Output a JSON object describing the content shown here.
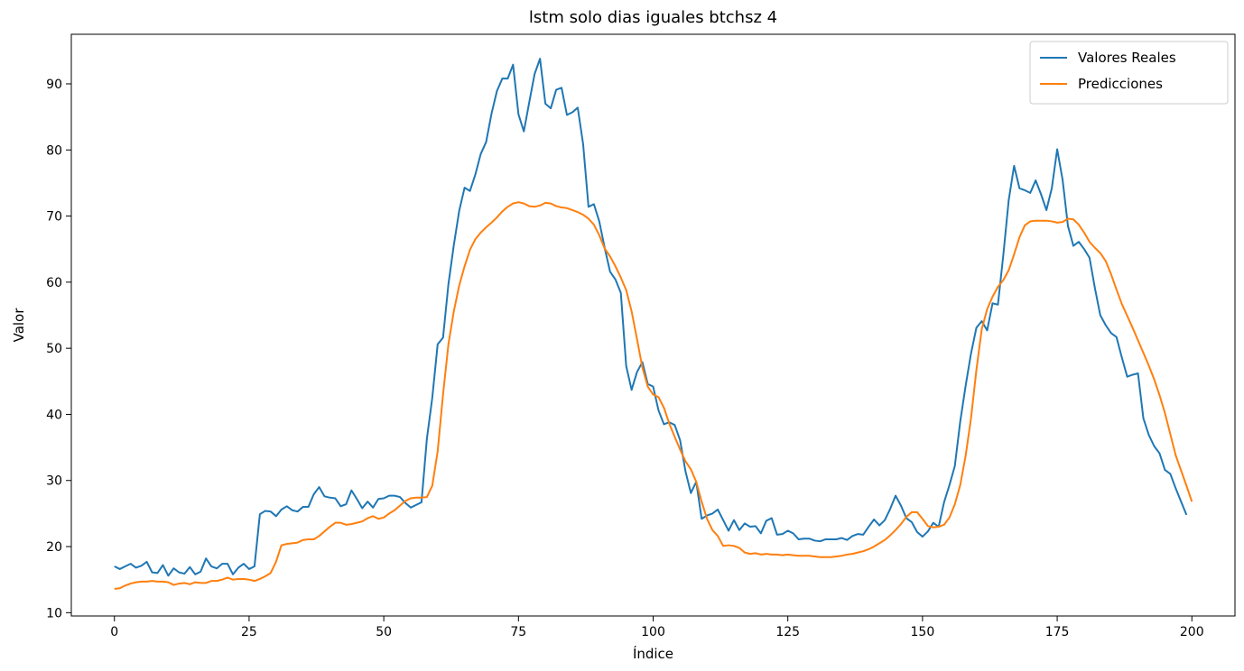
{
  "chart_data": {
    "type": "line",
    "title": "lstm solo dias iguales btchsz 4",
    "xlabel": "Índice",
    "ylabel": "Valor",
    "xlim": [
      -8,
      208
    ],
    "ylim": [
      9.5,
      97.5
    ],
    "xticks": [
      0,
      25,
      50,
      75,
      100,
      125,
      150,
      175,
      200
    ],
    "yticks": [
      10,
      20,
      30,
      40,
      50,
      60,
      70,
      80,
      90
    ],
    "grid": false,
    "legend_position": "top-right",
    "series": [
      {
        "name": "Valores Reales",
        "color": "#1f77b4",
        "x_start": 0,
        "values": [
          17.0,
          16.6,
          17.0,
          17.4,
          16.8,
          17.1,
          17.7,
          16.1,
          16.0,
          17.2,
          15.6,
          16.7,
          16.1,
          15.9,
          16.9,
          15.8,
          16.2,
          18.2,
          17.0,
          16.7,
          17.4,
          17.4,
          15.8,
          16.8,
          17.4,
          16.6,
          17.0,
          24.9,
          25.4,
          25.3,
          24.6,
          25.6,
          26.1,
          25.5,
          25.3,
          26.0,
          26.0,
          27.9,
          29.0,
          27.6,
          27.4,
          27.3,
          26.1,
          26.4,
          28.5,
          27.2,
          25.8,
          26.8,
          25.9,
          27.2,
          27.3,
          27.7,
          27.7,
          27.5,
          26.6,
          25.9,
          26.3,
          26.7,
          36.3,
          42.5,
          50.6,
          51.6,
          59.7,
          65.6,
          70.8,
          74.3,
          73.8,
          76.3,
          79.4,
          81.2,
          85.5,
          88.9,
          90.8,
          90.8,
          92.9,
          85.4,
          82.8,
          87.2,
          91.5,
          93.8,
          87.0,
          86.3,
          89.1,
          89.4,
          85.3,
          85.7,
          86.4,
          80.9,
          71.4,
          71.8,
          69.2,
          65.2,
          61.6,
          60.4,
          58.4,
          47.3,
          43.7,
          46.4,
          47.9,
          44.6,
          44.2,
          40.6,
          38.5,
          38.8,
          38.4,
          36.1,
          31.4,
          28.1,
          29.8,
          24.2,
          24.7,
          25.0,
          25.6,
          24.0,
          22.4,
          24.0,
          22.5,
          23.5,
          23.0,
          23.1,
          22.0,
          23.9,
          24.3,
          21.8,
          21.9,
          22.4,
          22.0,
          21.1,
          21.2,
          21.2,
          20.9,
          20.8,
          21.1,
          21.1,
          21.1,
          21.3,
          21.0,
          21.6,
          21.9,
          21.8,
          23.0,
          24.1,
          23.2,
          24.0,
          25.7,
          27.7,
          26.2,
          24.3,
          23.7,
          22.2,
          21.5,
          22.3,
          23.6,
          23.0,
          26.7,
          29.3,
          32.2,
          38.9,
          44.3,
          49.2,
          53.1,
          54.1,
          52.7,
          56.8,
          56.6,
          64.1,
          72.4,
          77.6,
          74.2,
          73.9,
          73.5,
          75.4,
          73.3,
          70.9,
          74.2,
          80.1,
          75.5,
          68.5,
          65.5,
          66.1,
          65.0,
          63.7,
          59.1,
          55.0,
          53.5,
          52.3,
          51.7,
          48.6,
          45.7,
          46.0,
          46.2,
          39.4,
          36.9,
          35.2,
          34.1,
          31.6,
          31.0,
          28.8,
          26.8,
          24.8
        ]
      },
      {
        "name": "Predicciones",
        "color": "#ff7f0e",
        "x_start": 0,
        "values": [
          13.6,
          13.7,
          14.1,
          14.4,
          14.6,
          14.7,
          14.7,
          14.8,
          14.7,
          14.7,
          14.6,
          14.2,
          14.4,
          14.5,
          14.3,
          14.6,
          14.5,
          14.5,
          14.8,
          14.8,
          15.0,
          15.3,
          15.0,
          15.1,
          15.1,
          15.0,
          14.8,
          15.1,
          15.5,
          16.0,
          17.7,
          20.2,
          20.4,
          20.5,
          20.6,
          21.0,
          21.1,
          21.1,
          21.6,
          22.3,
          23.0,
          23.6,
          23.6,
          23.3,
          23.4,
          23.6,
          23.8,
          24.3,
          24.6,
          24.2,
          24.4,
          25.0,
          25.5,
          26.2,
          26.9,
          27.3,
          27.4,
          27.4,
          27.5,
          29.2,
          34.4,
          43.0,
          50.6,
          55.6,
          59.5,
          62.4,
          64.9,
          66.5,
          67.5,
          68.3,
          69.0,
          69.8,
          70.7,
          71.4,
          71.9,
          72.1,
          71.9,
          71.5,
          71.4,
          71.6,
          72.0,
          71.9,
          71.5,
          71.3,
          71.2,
          70.9,
          70.6,
          70.2,
          69.6,
          68.7,
          67.1,
          65.1,
          63.9,
          62.4,
          60.7,
          58.8,
          55.6,
          51.4,
          47.1,
          44.2,
          43.0,
          42.6,
          41.0,
          38.6,
          36.6,
          34.7,
          32.9,
          31.7,
          29.8,
          26.8,
          24.2,
          22.5,
          21.6,
          20.1,
          20.2,
          20.1,
          19.8,
          19.1,
          18.9,
          19.0,
          18.8,
          18.9,
          18.8,
          18.8,
          18.7,
          18.8,
          18.7,
          18.6,
          18.6,
          18.6,
          18.5,
          18.4,
          18.4,
          18.4,
          18.5,
          18.6,
          18.8,
          18.9,
          19.1,
          19.3,
          19.6,
          20.0,
          20.5,
          21.0,
          21.7,
          22.5,
          23.4,
          24.5,
          25.2,
          25.2,
          24.2,
          23.1,
          22.9,
          23.0,
          23.3,
          24.4,
          26.4,
          29.3,
          33.7,
          39.4,
          46.7,
          52.9,
          55.9,
          57.8,
          59.3,
          60.3,
          61.8,
          64.2,
          66.8,
          68.6,
          69.2,
          69.3,
          69.3,
          69.3,
          69.2,
          69.0,
          69.1,
          69.6,
          69.5,
          68.7,
          67.5,
          66.1,
          65.2,
          64.4,
          63.2,
          61.2,
          58.9,
          56.7,
          54.9,
          53.1,
          51.2,
          49.3,
          47.4,
          45.3,
          42.9,
          40.2,
          37.0,
          33.8,
          31.5,
          29.2,
          26.8
        ]
      }
    ]
  }
}
